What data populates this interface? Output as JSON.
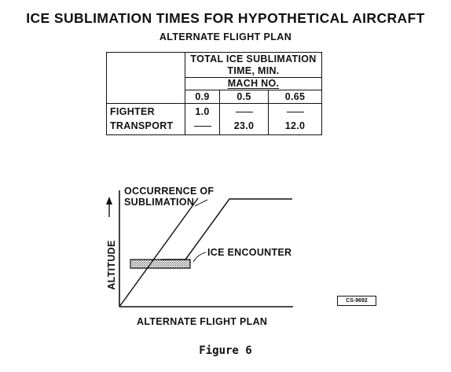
{
  "title": "ICE SUBLIMATION TIMES FOR HYPOTHETICAL AIRCRAFT",
  "subtitle": "ALTERNATE FLIGHT PLAN",
  "table": {
    "header_main": [
      "TOTAL ICE SUBLIMATION",
      "TIME, MIN."
    ],
    "header_group": "MACH NO.",
    "columns": [
      "0.9",
      "0.5",
      "0.65"
    ],
    "rows": [
      {
        "label": "FIGHTER",
        "values": [
          "1.0",
          "—",
          "—"
        ]
      },
      {
        "label": "TRANSPORT",
        "values": [
          "—",
          "23.0",
          "12.0"
        ]
      }
    ]
  },
  "diagram": {
    "occurrence_label": [
      "OCCURRENCE OF",
      "SUBLIMATION"
    ],
    "ice_encounter_label": "ICE ENCOUNTER",
    "y_axis_label": "ALTITUDE",
    "x_axis_label": "ALTERNATE FLIGHT PLAN",
    "code": "CS-9692"
  },
  "caption": "Figure 6",
  "colors": {
    "ink": "#111111",
    "background": "#ffffff"
  }
}
